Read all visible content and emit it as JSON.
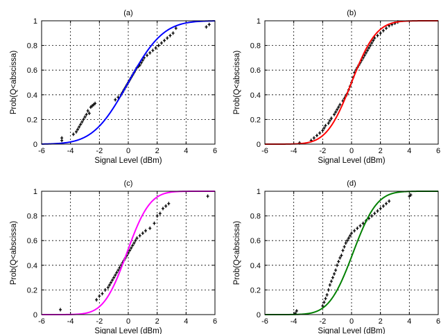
{
  "chart_data": [
    {
      "type": "line",
      "title": "(a)",
      "xlabel": "Signal Level (dBm)",
      "ylabel": "Prob(Q<abscissa)",
      "xlim": [
        -6,
        6
      ],
      "ylim": [
        0,
        1
      ],
      "xticks": [
        "-6",
        "-4",
        "-2",
        "0",
        "2",
        "4",
        "6"
      ],
      "yticks": [
        "0",
        "0.2",
        "0.4",
        "0.6",
        "0.8",
        "1"
      ],
      "grid": true,
      "series": [
        {
          "kind": "fit",
          "color": "#0000ff",
          "mean": 0.0,
          "std": 1.9
        },
        {
          "kind": "empirical",
          "color": "#000000",
          "x": [
            -4.6,
            -4.6,
            -3.8,
            -3.6,
            -3.5,
            -3.4,
            -3.3,
            -3.2,
            -3.1,
            -3.0,
            -2.9,
            -2.8,
            -2.7,
            -2.6,
            -2.5,
            -2.4,
            -2.3,
            -0.9,
            -0.7,
            -0.5,
            -0.4,
            -0.3,
            -0.2,
            -0.1,
            0.0,
            0.1,
            0.2,
            0.3,
            0.4,
            0.5,
            0.6,
            0.7,
            0.8,
            0.9,
            1.0,
            1.1,
            1.3,
            1.5,
            1.7,
            1.9,
            2.1,
            2.3,
            2.5,
            2.7,
            2.9,
            3.1,
            3.3,
            5.4,
            5.6
          ],
          "y": [
            0.03,
            0.05,
            0.08,
            0.1,
            0.12,
            0.14,
            0.16,
            0.18,
            0.2,
            0.22,
            0.24,
            0.27,
            0.25,
            0.3,
            0.31,
            0.32,
            0.33,
            0.36,
            0.38,
            0.4,
            0.42,
            0.44,
            0.46,
            0.48,
            0.5,
            0.52,
            0.54,
            0.56,
            0.58,
            0.6,
            0.62,
            0.63,
            0.64,
            0.66,
            0.68,
            0.7,
            0.72,
            0.74,
            0.76,
            0.78,
            0.8,
            0.82,
            0.84,
            0.86,
            0.88,
            0.9,
            0.94,
            0.95,
            0.97
          ]
        }
      ]
    },
    {
      "type": "line",
      "title": "(b)",
      "xlabel": "Signal Level (dBm)",
      "ylabel": "Prob(Q<abscissa)",
      "xlim": [
        -6,
        6
      ],
      "ylim": [
        0,
        1
      ],
      "xticks": [
        "-6",
        "-4",
        "-2",
        "0",
        "2",
        "4",
        "6"
      ],
      "yticks": [
        "0",
        "0.2",
        "0.4",
        "0.6",
        "0.8",
        "1"
      ],
      "grid": true,
      "series": [
        {
          "kind": "fit",
          "color": "#ff0000",
          "mean": 0.0,
          "std": 1.35
        },
        {
          "kind": "empirical",
          "color": "#000000",
          "x": [
            -3.6,
            -2.8,
            -2.6,
            -2.4,
            -2.2,
            -2.0,
            -1.9,
            -1.8,
            -1.6,
            -1.5,
            -1.4,
            -1.2,
            -1.1,
            -1.0,
            -0.9,
            -0.8,
            -0.6,
            -0.5,
            -0.4,
            -0.3,
            -0.2,
            -0.1,
            0.0,
            0.1,
            0.2,
            0.3,
            0.4,
            0.5,
            0.6,
            0.7,
            0.8,
            0.9,
            1.0,
            1.1,
            1.2,
            1.3,
            1.4,
            1.5,
            1.6,
            1.8,
            2.0,
            2.2,
            2.4,
            2.6,
            2.8,
            3.0,
            3.2
          ],
          "y": [
            0.01,
            0.03,
            0.05,
            0.07,
            0.09,
            0.11,
            0.13,
            0.15,
            0.17,
            0.19,
            0.21,
            0.24,
            0.26,
            0.28,
            0.3,
            0.32,
            0.35,
            0.37,
            0.39,
            0.41,
            0.44,
            0.47,
            0.5,
            0.54,
            0.58,
            0.6,
            0.62,
            0.64,
            0.66,
            0.68,
            0.7,
            0.72,
            0.74,
            0.76,
            0.78,
            0.8,
            0.82,
            0.84,
            0.86,
            0.88,
            0.9,
            0.92,
            0.94,
            0.96,
            0.97,
            0.98,
            0.99
          ]
        }
      ]
    },
    {
      "type": "line",
      "title": "(c)",
      "xlabel": "Signal Level (dBm)",
      "ylabel": "Prob(Q<abscissa)",
      "xlim": [
        -6,
        6
      ],
      "ylim": [
        0,
        1
      ],
      "xticks": [
        "-6",
        "-4",
        "-2",
        "0",
        "2",
        "4",
        "6"
      ],
      "yticks": [
        "0",
        "0.2",
        "0.4",
        "0.6",
        "0.8",
        "1"
      ],
      "grid": true,
      "series": [
        {
          "kind": "fit",
          "color": "#ff00ff",
          "mean": -0.1,
          "std": 1.25
        },
        {
          "kind": "empirical",
          "color": "#000000",
          "x": [
            -4.7,
            -2.2,
            -2.0,
            -1.8,
            -1.6,
            -1.4,
            -1.3,
            -1.2,
            -1.1,
            -1.0,
            -0.9,
            -0.8,
            -0.7,
            -0.6,
            -0.5,
            -0.4,
            -0.3,
            -0.2,
            -0.1,
            0.0,
            0.1,
            0.2,
            0.3,
            0.4,
            0.5,
            0.6,
            0.8,
            1.0,
            1.2,
            1.5,
            1.8,
            2.0,
            2.2,
            2.4,
            2.6,
            2.8,
            5.5
          ],
          "y": [
            0.04,
            0.12,
            0.15,
            0.17,
            0.2,
            0.22,
            0.24,
            0.26,
            0.28,
            0.3,
            0.32,
            0.34,
            0.36,
            0.38,
            0.4,
            0.42,
            0.44,
            0.46,
            0.48,
            0.5,
            0.52,
            0.54,
            0.56,
            0.58,
            0.6,
            0.62,
            0.64,
            0.66,
            0.68,
            0.7,
            0.74,
            0.8,
            0.82,
            0.86,
            0.88,
            0.9,
            0.96
          ]
        }
      ]
    },
    {
      "type": "line",
      "title": "(d)",
      "xlabel": "Signal Level (dBm)",
      "ylabel": "Prob(Q<abscissa)",
      "xlim": [
        -6,
        6
      ],
      "ylim": [
        0,
        1
      ],
      "xticks": [
        "-6",
        "-4",
        "-2",
        "0",
        "2",
        "4",
        "6"
      ],
      "yticks": [
        "0",
        "0.2",
        "0.4",
        "0.6",
        "0.8",
        "1"
      ],
      "grid": true,
      "series": [
        {
          "kind": "fit",
          "color": "#008000",
          "mean": 0.1,
          "std": 1.3
        },
        {
          "kind": "empirical",
          "color": "#000000",
          "x": [
            -3.9,
            -3.8,
            -2.0,
            -1.9,
            -1.8,
            -1.7,
            -1.6,
            -1.5,
            -1.4,
            -1.3,
            -1.2,
            -1.1,
            -1.0,
            -0.9,
            -0.8,
            -0.7,
            -0.6,
            -0.5,
            -0.4,
            -0.3,
            -0.2,
            -0.1,
            0.0,
            0.2,
            0.4,
            0.6,
            0.8,
            1.0,
            1.2,
            1.4,
            1.6,
            1.8,
            2.0,
            2.2,
            2.4,
            2.6,
            4.0,
            4.1
          ],
          "y": [
            0.01,
            0.03,
            0.07,
            0.1,
            0.13,
            0.16,
            0.2,
            0.24,
            0.27,
            0.3,
            0.33,
            0.36,
            0.4,
            0.43,
            0.46,
            0.48,
            0.52,
            0.55,
            0.58,
            0.6,
            0.62,
            0.64,
            0.66,
            0.68,
            0.7,
            0.72,
            0.74,
            0.76,
            0.78,
            0.8,
            0.82,
            0.84,
            0.86,
            0.88,
            0.9,
            0.92,
            0.96,
            0.97
          ]
        }
      ]
    }
  ]
}
